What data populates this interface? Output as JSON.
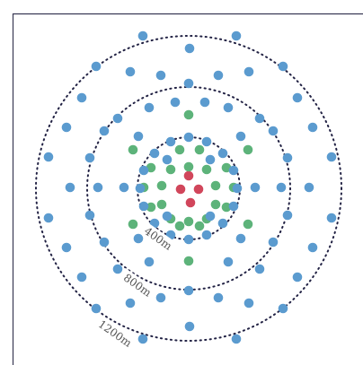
{
  "labels": {
    "r400": "400m",
    "r800": "800m",
    "r1200": "1200m"
  },
  "colors": {
    "blue": "#5b9bcf",
    "green": "#5db37a",
    "red": "#d1465b",
    "ring": "#222244",
    "frame": "#3a3a55",
    "label": "#555555"
  }
}
